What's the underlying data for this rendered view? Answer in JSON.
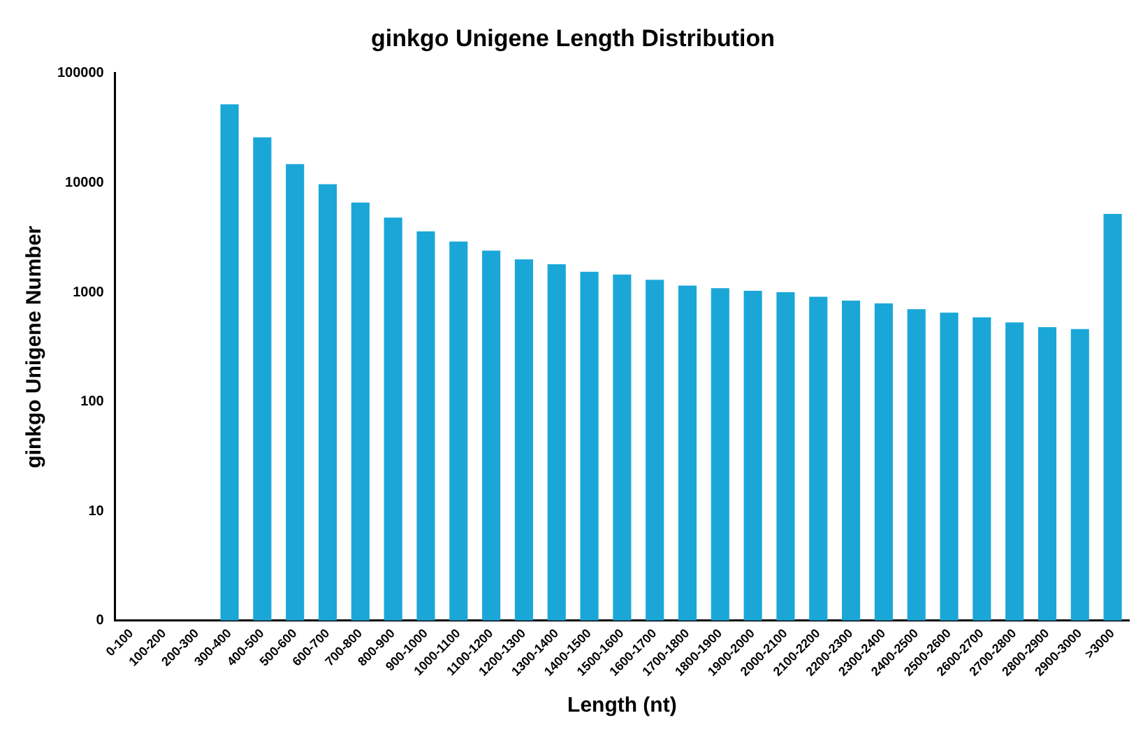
{
  "chart_data": {
    "type": "bar",
    "title": "ginkgo Unigene Length Distribution",
    "xlabel": "Length (nt)",
    "ylabel": "ginkgo Unigene Number",
    "categories": [
      "0-100",
      "100-200",
      "200-300",
      "300-400",
      "400-500",
      "500-600",
      "600-700",
      "700-800",
      "800-900",
      "900-1000",
      "1000-1100",
      "1100-1200",
      "1200-1300",
      "1300-1400",
      "1400-1500",
      "1500-1600",
      "1600-1700",
      "1700-1800",
      "1800-1900",
      "1900-2000",
      "2000-2100",
      "2100-2200",
      "2200-2300",
      "2300-2400",
      "2400-2500",
      "2500-2600",
      "2600-2700",
      "2700-2800",
      "2800-2900",
      "2900-3000",
      ">3000"
    ],
    "values": [
      0,
      0,
      0,
      52000,
      26000,
      14800,
      9700,
      6600,
      4800,
      3600,
      2900,
      2400,
      2000,
      1800,
      1540,
      1450,
      1300,
      1150,
      1090,
      1030,
      1000,
      910,
      840,
      790,
      700,
      650,
      590,
      530,
      480,
      460,
      5200
    ],
    "color": "#1aa7d8",
    "log": "y",
    "ylim": [
      0,
      100000
    ],
    "yticks": [
      0,
      10,
      100,
      1000,
      10000,
      100000
    ],
    "grid": false,
    "legend": false
  }
}
